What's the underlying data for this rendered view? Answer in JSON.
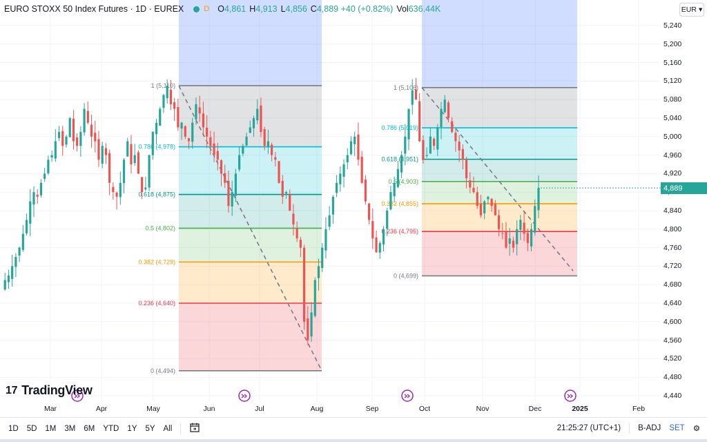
{
  "legend": {
    "symbol": "EURO STOXX 50 Index Futures · 1D · EUREX",
    "resolution_badge": "D",
    "open_key": "O",
    "open": "4,861",
    "high_key": "H",
    "high": "4,913",
    "low_key": "L",
    "low": "4,856",
    "close_key": "C",
    "close": "4,889 +40 (+0.82%)",
    "vol_key": "Vol",
    "vol": "636.44K"
  },
  "currency_button": {
    "label": "EUR",
    "icon": "chevron-down-icon"
  },
  "last_price": "4,889",
  "price_ticks": [
    "5,240",
    "5,200",
    "5,160",
    "5,120",
    "5,080",
    "5,040",
    "5,000",
    "4,960",
    "4,920",
    "4,880",
    "4,840",
    "4,800",
    "4,760",
    "4,720",
    "4,680",
    "4,640",
    "4,600",
    "4,560",
    "4,520",
    "4,480",
    "4,440"
  ],
  "time_ticks": [
    "Mar",
    "Apr",
    "May",
    "Jun",
    "Jul",
    "Aug",
    "Sep",
    "Oct",
    "Nov",
    "Dec",
    "2025",
    "Feb"
  ],
  "bold_time_ticks": [
    "2025"
  ],
  "toolbar": {
    "ranges": [
      "1D",
      "5D",
      "1M",
      "3M",
      "6M",
      "YTD",
      "1Y",
      "5Y",
      "All"
    ],
    "calendar_icon": "calendar-range-icon",
    "clock": "21:25:27 (UTC+1)",
    "adj": "B-ADJ",
    "set": "SET",
    "settings_icon": "gear-icon"
  },
  "logo": {
    "mark": "17",
    "text": "TradingView"
  },
  "colors": {
    "up": "#26a69a",
    "down": "#ef5350",
    "accent": "#2962ff"
  },
  "fib_left": {
    "levels": [
      {
        "ratio": "1",
        "price": 5110,
        "label": "1 (5,110)",
        "color": "#787b86"
      },
      {
        "ratio": "0.786",
        "price": 4978,
        "label": "0.786 (4,978)",
        "color": "#00bcd4"
      },
      {
        "ratio": "0.618",
        "price": 4875,
        "label": "0.618 (4,875)",
        "color": "#009688"
      },
      {
        "ratio": "0.5",
        "price": 4802,
        "label": "0.5 (4,802)",
        "color": "#4caf50"
      },
      {
        "ratio": "0.382",
        "price": 4729,
        "label": "0.382 (4,729)",
        "color": "#ff9800"
      },
      {
        "ratio": "0.236",
        "price": 4640,
        "label": "0.236 (4,640)",
        "color": "#f23645"
      },
      {
        "ratio": "0",
        "price": 4494,
        "label": "0 (4,494)",
        "color": "#787b86"
      }
    ]
  },
  "fib_right": {
    "levels": [
      {
        "ratio": "1",
        "price": 5106,
        "label": "1 (5,106)",
        "color": "#787b86"
      },
      {
        "ratio": "0.786",
        "price": 5019,
        "label": "0.786 (5,019)",
        "color": "#00bcd4"
      },
      {
        "ratio": "0.618",
        "price": 4951,
        "label": "0.618 (4,951)",
        "color": "#009688"
      },
      {
        "ratio": "0.5",
        "price": 4903,
        "label": "0.5 (4,903)",
        "color": "#4caf50"
      },
      {
        "ratio": "0.382",
        "price": 4855,
        "label": "0.382 (4,855)",
        "color": "#ff9800"
      },
      {
        "ratio": "0.236",
        "price": 4795,
        "label": "0.236 (4,795)",
        "color": "#f23645"
      },
      {
        "ratio": "0",
        "price": 4699,
        "label": "0 (4,699)",
        "color": "#787b86"
      }
    ]
  },
  "price_path": [
    4670,
    4690,
    4700,
    4720,
    4740,
    4760,
    4790,
    4820,
    4860,
    4880,
    4870,
    4900,
    4920,
    4950,
    4960,
    4990,
    5010,
    4980,
    5000,
    5040,
    4990,
    4980,
    5010,
    5060,
    5030,
    5000,
    4990,
    4950,
    4980,
    4960,
    4900,
    4880,
    4870,
    4900,
    4950,
    4990,
    4940,
    4960,
    4920,
    4880,
    4890,
    4960,
    5010,
    5030,
    5060,
    5090,
    5110,
    5070,
    5060,
    5020,
    5030,
    5000,
    4990,
    5030,
    5070,
    5050,
    5020,
    5000,
    4980,
    4960,
    4950,
    4920,
    4900,
    4850,
    4880,
    4920,
    4960,
    4980,
    5000,
    5020,
    5040,
    5060,
    5010,
    4980,
    4990,
    4960,
    4950,
    4900,
    4870,
    4880,
    4840,
    4810,
    4780,
    4760,
    4600,
    4560,
    4620,
    4690,
    4720,
    4760,
    4800,
    4830,
    4870,
    4900,
    4920,
    4940,
    4960,
    4990,
    5000,
    4950,
    4900,
    4860,
    4820,
    4780,
    4750,
    4770,
    4800,
    4840,
    4880,
    4900,
    4930,
    4960,
    5000,
    5060,
    5100,
    5080,
    4990,
    4950,
    4960,
    5000,
    4980,
    5020,
    5060,
    5080,
    5040,
    5010,
    4990,
    4970,
    4950,
    4910,
    4890,
    4880,
    4850,
    4830,
    4860,
    4870,
    4850,
    4830,
    4800,
    4790,
    4760,
    4780,
    4760,
    4800,
    4820,
    4790,
    4770,
    4800,
    4850,
    4889
  ]
}
